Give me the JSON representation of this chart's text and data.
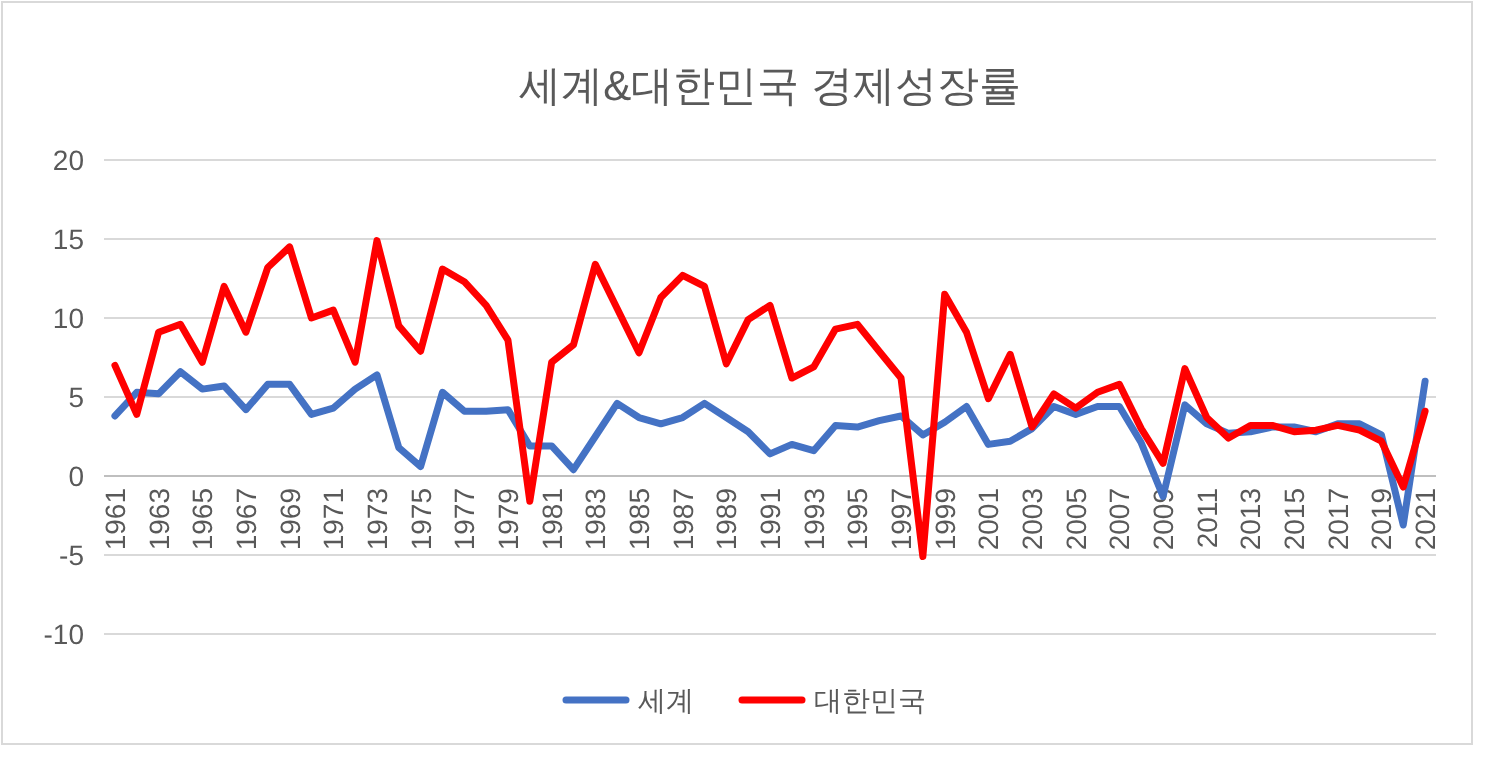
{
  "chart_data": {
    "type": "line",
    "title": "세계&대한민국 경제성장률",
    "categories": [
      "1961",
      null,
      "1963",
      null,
      "1965",
      null,
      "1967",
      null,
      "1969",
      null,
      "1971",
      null,
      "1973",
      null,
      "1975",
      null,
      "1977",
      null,
      "1979",
      null,
      "1981",
      null,
      "1983",
      null,
      "1985",
      null,
      "1987",
      null,
      "1989",
      null,
      "1991",
      null,
      "1993",
      null,
      "1995",
      null,
      "1997",
      null,
      "1999",
      null,
      "2001",
      null,
      "2003",
      null,
      "2005",
      null,
      "2007",
      null,
      "2009",
      null,
      "2011",
      null,
      "2013",
      null,
      "2015",
      null,
      "2017",
      null,
      "2019",
      null,
      "2021"
    ],
    "series": [
      {
        "name": "세계",
        "color": "#4472c4",
        "values": [
          3.8,
          5.3,
          5.2,
          6.6,
          5.5,
          5.7,
          4.2,
          5.8,
          5.8,
          3.9,
          4.3,
          5.5,
          6.4,
          1.8,
          0.6,
          5.3,
          4.1,
          4.1,
          4.2,
          1.9,
          1.9,
          0.4,
          2.5,
          4.6,
          3.7,
          3.3,
          3.7,
          4.6,
          3.7,
          2.8,
          1.4,
          2.0,
          1.6,
          3.2,
          3.1,
          3.5,
          3.8,
          2.6,
          3.4,
          4.4,
          2.0,
          2.2,
          3.0,
          4.4,
          3.9,
          4.4,
          4.4,
          2.1,
          -1.3,
          4.5,
          3.3,
          2.7,
          2.8,
          3.1,
          3.1,
          2.8,
          3.3,
          3.3,
          2.6,
          -3.1,
          6.0
        ]
      },
      {
        "name": "대한민국",
        "color": "#ff0000",
        "values": [
          7.0,
          3.9,
          9.1,
          9.6,
          7.2,
          12.0,
          9.1,
          13.2,
          14.5,
          10.0,
          10.5,
          7.2,
          14.9,
          9.5,
          7.9,
          13.1,
          12.3,
          10.8,
          8.6,
          -1.6,
          7.2,
          8.3,
          13.4,
          10.6,
          7.8,
          11.3,
          12.7,
          12.0,
          7.1,
          9.9,
          10.8,
          6.2,
          6.9,
          9.3,
          9.6,
          7.9,
          6.2,
          -5.1,
          11.5,
          9.1,
          4.9,
          7.7,
          3.1,
          5.2,
          4.3,
          5.3,
          5.8,
          3.0,
          0.8,
          6.8,
          3.7,
          2.4,
          3.2,
          3.2,
          2.8,
          2.9,
          3.2,
          2.9,
          2.2,
          -0.7,
          4.1
        ]
      }
    ],
    "ylim": [
      -10,
      20
    ],
    "yticks": [
      -10,
      -5,
      0,
      5,
      10,
      15,
      20
    ],
    "grid": "y",
    "legend": "bottom"
  }
}
